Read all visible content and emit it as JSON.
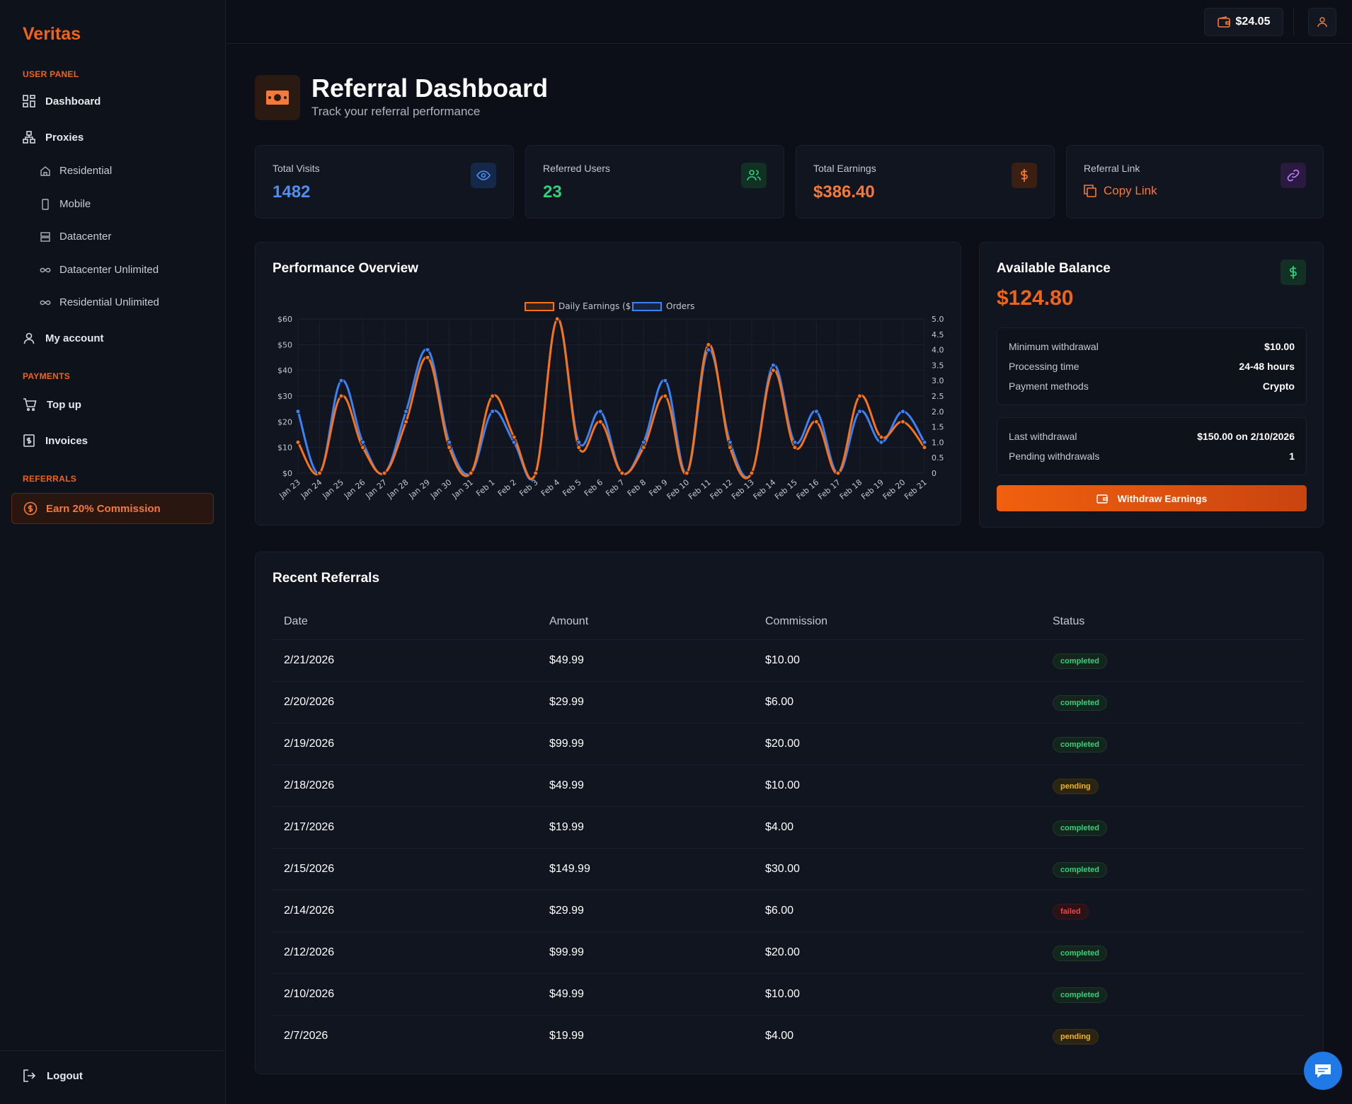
{
  "app": {
    "name": "Veritas"
  },
  "sidebar": {
    "user_panel_label": "USER PANEL",
    "dashboard": "Dashboard",
    "proxies": "Proxies",
    "sub_items": [
      "Residential",
      "Mobile",
      "Datacenter",
      "Datacenter Unlimited",
      "Residential Unlimited"
    ],
    "my_account": "My account",
    "payments_label": "PAYMENTS",
    "top_up": "Top up",
    "invoices": "Invoices",
    "referrals_label": "REFERRALS",
    "earn_commission": "Earn 20% Commission",
    "logout": "Logout"
  },
  "topbar": {
    "balance": "$24.05"
  },
  "header": {
    "title": "Referral Dashboard",
    "subtitle": "Track your referral performance"
  },
  "stats": {
    "visits": {
      "label": "Total Visits",
      "value": "1482",
      "color": "#3b82f6"
    },
    "users": {
      "label": "Referred Users",
      "value": "23",
      "color": "#22c55e"
    },
    "earnings": {
      "label": "Total Earnings",
      "value": "$386.40",
      "color": "#f97316"
    },
    "link": {
      "label": "Referral Link",
      "action": "Copy Link",
      "color": "#a855f7"
    }
  },
  "performance": {
    "title": "Performance Overview"
  },
  "chart_data": {
    "type": "line",
    "categories": [
      "Jan 23",
      "Jan 24",
      "Jan 25",
      "Jan 26",
      "Jan 27",
      "Jan 28",
      "Jan 29",
      "Jan 30",
      "Jan 31",
      "Feb 1",
      "Feb 2",
      "Feb 3",
      "Feb 4",
      "Feb 5",
      "Feb 6",
      "Feb 7",
      "Feb 8",
      "Feb 9",
      "Feb 10",
      "Feb 11",
      "Feb 12",
      "Feb 13",
      "Feb 14",
      "Feb 15",
      "Feb 16",
      "Feb 17",
      "Feb 18",
      "Feb 19",
      "Feb 20",
      "Feb 21"
    ],
    "series": [
      {
        "name": "Daily Earnings ($)",
        "axis": "left",
        "color": "#f97316",
        "values": [
          12,
          0,
          30,
          10,
          0,
          20,
          45,
          10,
          0,
          30,
          14,
          0,
          60,
          10,
          20,
          0,
          10,
          30,
          0,
          50,
          10,
          0,
          40,
          10,
          20,
          0,
          30,
          14,
          20,
          10
        ]
      },
      {
        "name": "Orders",
        "axis": "right",
        "color": "#3b82f6",
        "values": [
          2,
          0,
          3,
          1,
          0,
          2,
          4,
          1,
          0,
          2,
          1,
          0,
          5,
          1,
          2,
          0,
          1,
          3,
          0,
          4,
          1,
          0,
          3.5,
          1,
          2,
          0,
          2,
          1,
          2,
          1
        ]
      }
    ],
    "y_left": {
      "min": 0,
      "max": 60,
      "ticks": [
        0,
        10,
        20,
        30,
        40,
        50,
        60
      ],
      "prefix": "$"
    },
    "y_right": {
      "min": 0,
      "max": 5,
      "ticks": [
        "0",
        "0.5",
        "1.0",
        "1.5",
        "2.0",
        "2.5",
        "3.0",
        "3.5",
        "4.0",
        "4.5",
        "5.0"
      ]
    },
    "grid": true,
    "legend": "top-center"
  },
  "balance": {
    "title": "Available Balance",
    "amount": "$124.80",
    "min_withdrawal_label": "Minimum withdrawal",
    "min_withdrawal": "$10.00",
    "processing_label": "Processing time",
    "processing": "24-48 hours",
    "methods_label": "Payment methods",
    "methods": "Crypto",
    "last_label": "Last withdrawal",
    "last": "$150.00 on 2/10/2026",
    "pending_label": "Pending withdrawals",
    "pending": "1",
    "button": "Withdraw Earnings"
  },
  "referrals": {
    "title": "Recent Referrals",
    "columns": [
      "Date",
      "Amount",
      "Commission",
      "Status"
    ],
    "rows": [
      {
        "date": "2/21/2026",
        "amount": "$49.99",
        "commission": "$10.00",
        "status": "completed"
      },
      {
        "date": "2/20/2026",
        "amount": "$29.99",
        "commission": "$6.00",
        "status": "completed"
      },
      {
        "date": "2/19/2026",
        "amount": "$99.99",
        "commission": "$20.00",
        "status": "completed"
      },
      {
        "date": "2/18/2026",
        "amount": "$49.99",
        "commission": "$10.00",
        "status": "pending"
      },
      {
        "date": "2/17/2026",
        "amount": "$19.99",
        "commission": "$4.00",
        "status": "completed"
      },
      {
        "date": "2/15/2026",
        "amount": "$149.99",
        "commission": "$30.00",
        "status": "completed"
      },
      {
        "date": "2/14/2026",
        "amount": "$29.99",
        "commission": "$6.00",
        "status": "failed"
      },
      {
        "date": "2/12/2026",
        "amount": "$99.99",
        "commission": "$20.00",
        "status": "completed"
      },
      {
        "date": "2/10/2026",
        "amount": "$49.99",
        "commission": "$10.00",
        "status": "completed"
      },
      {
        "date": "2/7/2026",
        "amount": "$19.99",
        "commission": "$4.00",
        "status": "pending"
      }
    ]
  },
  "icons": {
    "logo": "none",
    "dashboard": "grid-icon",
    "proxies": "network-icon",
    "residential": "home-icon",
    "mobile": "phone-icon",
    "datacenter": "server-icon",
    "unlimited": "infinity-icon",
    "account": "user-icon",
    "topup": "cart-icon",
    "invoices": "receipt-icon",
    "earn": "dollar-circle-icon",
    "logout": "logout-icon",
    "chat": "chat-icon"
  }
}
